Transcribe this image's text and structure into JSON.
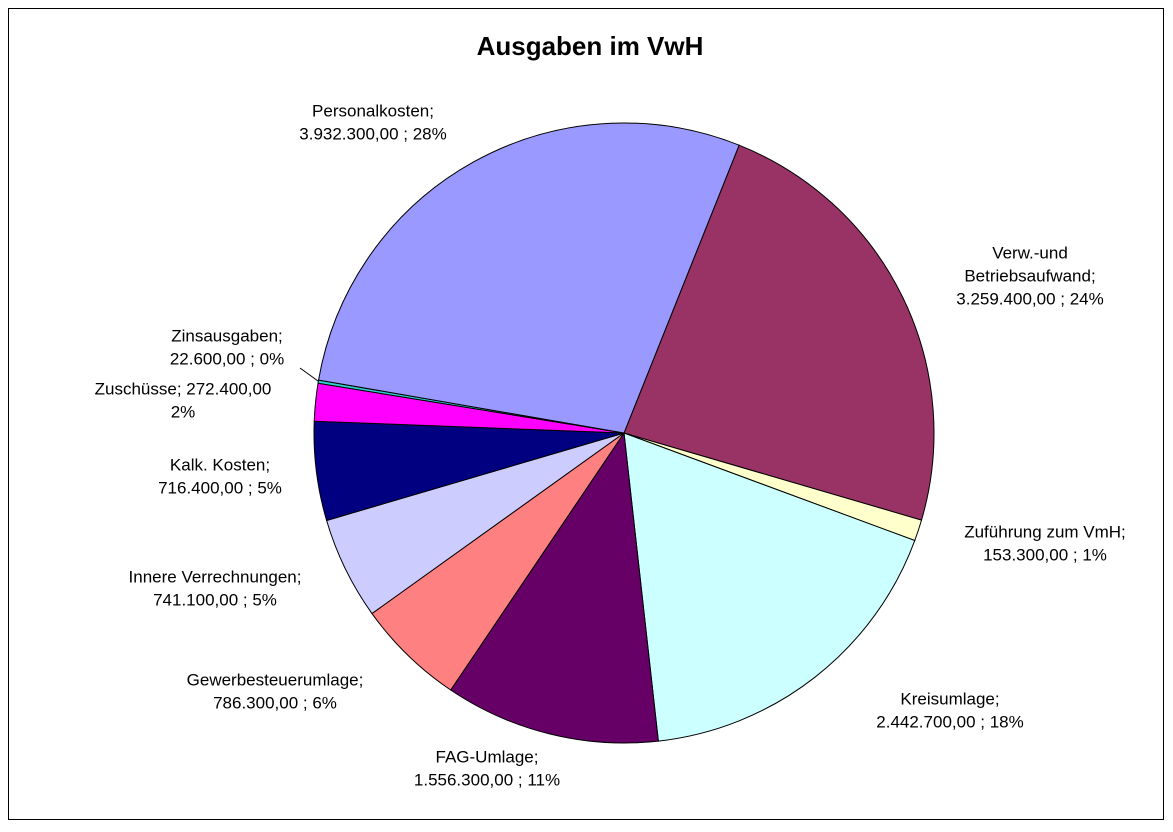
{
  "chart_data": {
    "type": "pie",
    "title": "Ausgaben im VwH",
    "values": [
      3259400,
      153300,
      2442700,
      1556300,
      786300,
      741100,
      716400,
      272400,
      22600,
      3932300
    ],
    "value_labels": [
      [
        "Verw.-und",
        "Betriebsaufwand;",
        "3.259.400,00 ; 24%"
      ],
      [
        "Zuführung zum VmH;",
        "153.300,00 ; 1%"
      ],
      [
        "Kreisumlage;",
        "2.442.700,00 ; 18%"
      ],
      [
        "FAG-Umlage;",
        "1.556.300,00 ; 11%"
      ],
      [
        "Gewerbesteuerumlage;",
        "786.300,00 ; 6%"
      ],
      [
        "Innere Verrechnungen;",
        "741.100,00 ; 5%"
      ],
      [
        "Kalk. Kosten;",
        "716.400,00 ; 5%"
      ],
      [
        "Zuschüsse; 272.400,00",
        "2%"
      ],
      [
        "Zinsausgaben;",
        "22.600,00 ; 0%"
      ],
      [
        "Personalkosten;",
        "3.932.300,00 ; 28%"
      ]
    ],
    "colors": [
      "#993366",
      "#ffffcc",
      "#ccffff",
      "#660066",
      "#ff8080",
      "#ccccff",
      "#000080",
      "#ff00ff",
      "#33cccc",
      "#9999ff"
    ]
  }
}
